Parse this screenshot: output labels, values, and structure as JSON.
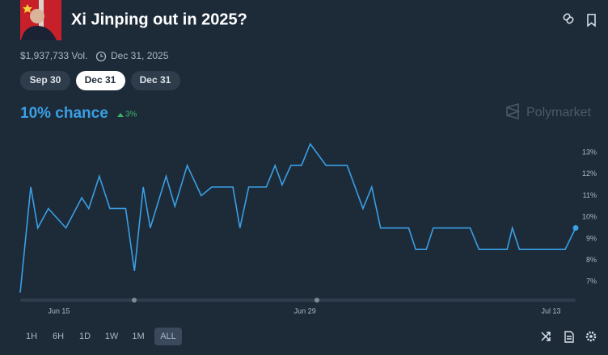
{
  "header": {
    "title": "Xi Jinping out in 2025?",
    "volume": "$1,937,733 Vol.",
    "end_date": "Dec 31, 2025"
  },
  "date_tabs": [
    "Sep 30",
    "Dec 31",
    "Dec 31"
  ],
  "chance": "10% chance",
  "change": "3%",
  "brand": "Polymarket",
  "range_buttons": [
    "1H",
    "6H",
    "1D",
    "1W",
    "1M",
    "ALL"
  ],
  "chart_data": {
    "type": "line",
    "color": "#3a9fe4",
    "x": [
      -2.2,
      -1.6,
      -1.2,
      -0.6,
      0.4,
      1.3,
      1.7,
      2.3,
      2.9,
      3.8,
      4.3,
      4.8,
      5.2,
      6.1,
      6.6,
      7.3,
      8.1,
      8.7,
      9.9,
      10.3,
      10.8,
      11.8,
      12.3,
      12.7,
      13.2,
      13.8,
      14.3,
      15.2,
      16.4,
      17.3,
      17.8,
      18.3,
      19.9,
      20.3,
      20.9,
      21.3,
      23.4,
      23.9,
      25.5,
      25.8,
      26.2,
      28.8,
      29.4
    ],
    "values": [
      6.5,
      11.4,
      9.5,
      10.4,
      9.5,
      10.9,
      10.4,
      11.9,
      10.4,
      10.4,
      7.5,
      11.4,
      9.5,
      11.9,
      10.5,
      12.4,
      11.0,
      11.4,
      11.4,
      9.5,
      11.4,
      11.4,
      12.4,
      11.5,
      12.4,
      12.4,
      13.4,
      12.4,
      12.4,
      10.4,
      11.4,
      9.5,
      9.5,
      8.5,
      8.5,
      9.5,
      9.5,
      8.5,
      8.5,
      9.5,
      8.5,
      8.5,
      9.5
    ],
    "xlim": [
      -2.2,
      29.4
    ],
    "ylim": [
      6.3,
      13.9
    ],
    "xticks": [
      {
        "value": 0,
        "label": "Jun 15"
      },
      {
        "value": 14,
        "label": "Jun 29"
      },
      {
        "value": 28,
        "label": "Jul 13"
      }
    ],
    "yticks": [
      {
        "value": 7,
        "label": "7%"
      },
      {
        "value": 8,
        "label": "8%"
      },
      {
        "value": 9,
        "label": "9%"
      },
      {
        "value": 10,
        "label": "10%"
      },
      {
        "value": 11,
        "label": "11%"
      },
      {
        "value": 12,
        "label": "12%"
      },
      {
        "value": 13,
        "label": "13%"
      }
    ],
    "grid": false
  }
}
